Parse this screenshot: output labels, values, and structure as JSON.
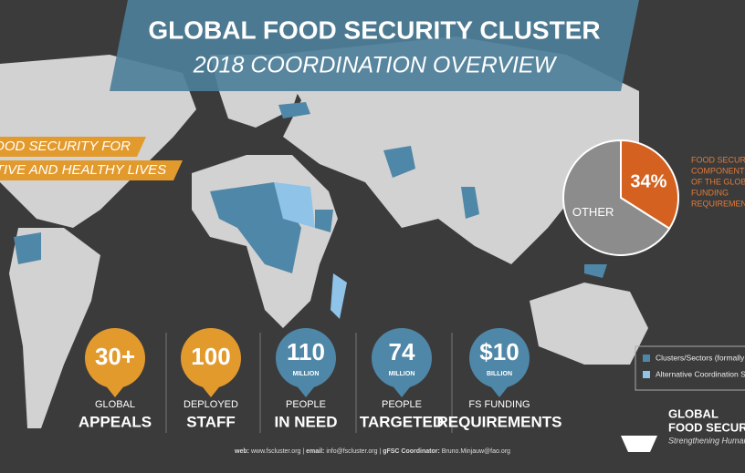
{
  "header": {
    "title": "GLOBAL FOOD SECURITY CLUSTER",
    "subtitle": "2018 COORDINATION OVERVIEW"
  },
  "banner": [
    "FOOD SECURITY FOR",
    "ACTIVE AND HEALTHY  LIVES"
  ],
  "pie": {
    "type": "pie",
    "segments": [
      {
        "value": 34,
        "label": "34%",
        "color": "#d4611f"
      },
      {
        "value": 66,
        "name": "OTHER",
        "color": "#8c8c8c"
      }
    ],
    "caption": [
      "FOOD SECURITY",
      "COMPONENT",
      "OF THE GLOBAL",
      "FUNDING",
      "REQUIREMENTS"
    ]
  },
  "stats": [
    {
      "number": "30+",
      "lines": [
        "GLOBAL",
        "APPEALS"
      ],
      "color": "#e39a2d"
    },
    {
      "number": "100",
      "lines": [
        "DEPLOYED",
        "STAFF"
      ],
      "color": "#e39a2d"
    },
    {
      "number": "110",
      "unit": "MILLION",
      "lines": [
        "PEOPLE",
        "IN NEED"
      ],
      "color": "#4f87a8"
    },
    {
      "number": "74",
      "unit": "MILLION",
      "lines": [
        "PEOPLE",
        "TARGETED"
      ],
      "color": "#4f87a8"
    },
    {
      "number": "$10",
      "unit": "BILLION",
      "lines": [
        "FS FUNDING",
        "REQUIREMENTS"
      ],
      "color": "#4f87a8"
    }
  ],
  "legend": [
    {
      "label": "Clusters/Sectors (formally activated)",
      "color": "#4f87a8"
    },
    {
      "label": "Alternative Coordination Structures",
      "color": "#8fc3e8"
    }
  ],
  "footer": [
    {
      "key": "web:",
      "value": "www.fscluster.org"
    },
    {
      "key": "email:",
      "value": "info@fscluster.org"
    },
    {
      "key": "gFSC Coordinator:",
      "value": "Bruno.Minjauw@fao.org"
    }
  ],
  "logo": {
    "title": [
      "GLOBAL",
      "FOOD SECURITY CLUSTER"
    ],
    "tagline": "Strengthening Humanitarian Response"
  }
}
